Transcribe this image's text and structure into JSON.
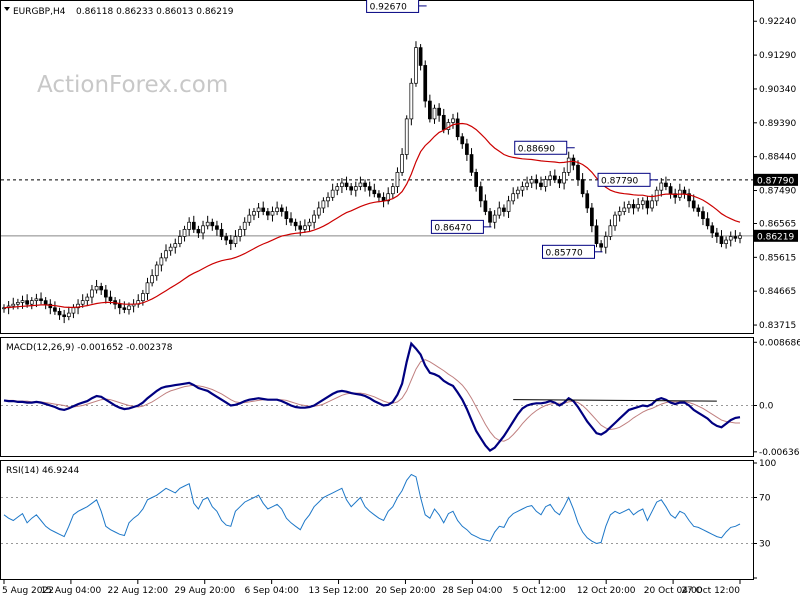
{
  "header": {
    "symbol": "EURGBP,H4",
    "ohlc": "0.86118 0.86233 0.86013 0.86219",
    "watermark": "ActionForex.com"
  },
  "colors": {
    "candle": "#000000",
    "ma": "#cc0000",
    "macd": "#000080",
    "signal": "#c08080",
    "rsi": "#1e78c8",
    "level": "#000000",
    "current": "#888888"
  },
  "chart_data": [
    {
      "type": "candlestick",
      "panel": "price",
      "ylim": [
        0.8352,
        0.9278
      ],
      "y_ticks": [
        "0.92240",
        "0.91290",
        "0.90340",
        "0.89390",
        "0.88440",
        "0.87490",
        "0.86565",
        "0.85615",
        "0.84665",
        "0.83715"
      ],
      "x_ticks": [
        "5 Aug 2022",
        "15 Aug 04:00",
        "22 Aug 12:00",
        "29 Aug 20:00",
        "6 Sep 04:00",
        "13 Sep 12:00",
        "20 Sep 20:00",
        "28 Sep 04:00",
        "5 Oct 12:00",
        "12 Oct 20:00",
        "20 Oct 04:00",
        "27 Oct 12:00"
      ],
      "close_series": [
        0.842,
        0.8425,
        0.843,
        0.8435,
        0.844,
        0.843,
        0.844,
        0.8445,
        0.844,
        0.843,
        0.842,
        0.841,
        0.84,
        0.8395,
        0.8405,
        0.842,
        0.843,
        0.844,
        0.845,
        0.847,
        0.848,
        0.847,
        0.845,
        0.844,
        0.843,
        0.842,
        0.8415,
        0.8425,
        0.843,
        0.844,
        0.846,
        0.849,
        0.851,
        0.854,
        0.856,
        0.858,
        0.859,
        0.86,
        0.862,
        0.864,
        0.866,
        0.864,
        0.863,
        0.865,
        0.866,
        0.865,
        0.864,
        0.862,
        0.861,
        0.86,
        0.862,
        0.864,
        0.866,
        0.868,
        0.869,
        0.87,
        0.869,
        0.868,
        0.869,
        0.87,
        0.869,
        0.867,
        0.866,
        0.865,
        0.864,
        0.865,
        0.866,
        0.868,
        0.87,
        0.872,
        0.873,
        0.875,
        0.876,
        0.877,
        0.876,
        0.875,
        0.876,
        0.877,
        0.876,
        0.875,
        0.874,
        0.873,
        0.872,
        0.874,
        0.876,
        0.88,
        0.885,
        0.895,
        0.905,
        0.915,
        0.91,
        0.9,
        0.895,
        0.898,
        0.896,
        0.892,
        0.894,
        0.895,
        0.89,
        0.888,
        0.885,
        0.88,
        0.876,
        0.872,
        0.869,
        0.866,
        0.868,
        0.87,
        0.869,
        0.872,
        0.874,
        0.875,
        0.876,
        0.877,
        0.878,
        0.877,
        0.876,
        0.878,
        0.879,
        0.878,
        0.877,
        0.88,
        0.884,
        0.882,
        0.878,
        0.874,
        0.87,
        0.865,
        0.86,
        0.859,
        0.862,
        0.865,
        0.868,
        0.869,
        0.87,
        0.871,
        0.87,
        0.871,
        0.872,
        0.87,
        0.872,
        0.875,
        0.877,
        0.876,
        0.874,
        0.873,
        0.875,
        0.874,
        0.872,
        0.87,
        0.869,
        0.867,
        0.865,
        0.863,
        0.862,
        0.86,
        0.861,
        0.862,
        0.8615,
        0.8622
      ],
      "ma_series": [
        0.842,
        0.8421,
        0.8422,
        0.8423,
        0.8424,
        0.8425,
        0.8426,
        0.8427,
        0.8428,
        0.8428,
        0.8427,
        0.8426,
        0.8424,
        0.8422,
        0.8421,
        0.8421,
        0.8422,
        0.8424,
        0.8426,
        0.8429,
        0.8432,
        0.8434,
        0.8435,
        0.8435,
        0.8434,
        0.8432,
        0.843,
        0.843,
        0.843,
        0.8431,
        0.8434,
        0.8439,
        0.8445,
        0.8452,
        0.846,
        0.8468,
        0.8476,
        0.8484,
        0.8492,
        0.8501,
        0.851,
        0.8517,
        0.8523,
        0.853,
        0.8537,
        0.8543,
        0.8548,
        0.8552,
        0.8555,
        0.8557,
        0.8561,
        0.8566,
        0.8572,
        0.8579,
        0.8586,
        0.8593,
        0.8599,
        0.8604,
        0.861,
        0.8616,
        0.8621,
        0.8624,
        0.8627,
        0.8629,
        0.863,
        0.8632,
        0.8634,
        0.8638,
        0.8643,
        0.8649,
        0.8656,
        0.8664,
        0.8672,
        0.868,
        0.8687,
        0.8692,
        0.8698,
        0.8704,
        0.8709,
        0.8713,
        0.8716,
        0.8718,
        0.8719,
        0.8722,
        0.8726,
        0.8734,
        0.8746,
        0.8767,
        0.8795,
        0.883,
        0.8858,
        0.8875,
        0.8887,
        0.8901,
        0.8912,
        0.8918,
        0.8926,
        0.8934,
        0.8936,
        0.8937,
        0.8935,
        0.8929,
        0.892,
        0.8908,
        0.8895,
        0.888,
        0.8868,
        0.8859,
        0.885,
        0.8845,
        0.8842,
        0.884,
        0.8838,
        0.8837,
        0.8836,
        0.8834,
        0.8832,
        0.8831,
        0.883,
        0.8829,
        0.8827,
        0.8828,
        0.883,
        0.8831,
        0.8828,
        0.8822,
        0.8813,
        0.88,
        0.8784,
        0.8769,
        0.8758,
        0.875,
        0.8745,
        0.8742,
        0.874,
        0.8739,
        0.8737,
        0.8736,
        0.8736,
        0.8733,
        0.8732,
        0.8734,
        0.8737,
        0.8739,
        0.8739,
        0.8738,
        0.8739,
        0.8739,
        0.8737,
        0.8733,
        0.8728,
        0.8722,
        0.8714,
        0.8705,
        0.8695,
        0.8684,
        0.8676,
        0.867,
        0.8664,
        0.866
      ],
      "horizontal_level": "0.87790",
      "current_price": "0.86219",
      "annotations": [
        {
          "text": "0.92670",
          "x_index": 90,
          "y": 0.9267,
          "side": "left"
        },
        {
          "text": "0.88690",
          "x_index": 122,
          "y": 0.8869,
          "side": "left"
        },
        {
          "text": "0.87790",
          "x_index": 140,
          "y": 0.8779,
          "side": "left"
        },
        {
          "text": "0.86470",
          "x_index": 104,
          "y": 0.8647,
          "side": "left"
        },
        {
          "text": "0.85770",
          "x_index": 128,
          "y": 0.8577,
          "side": "left"
        }
      ]
    },
    {
      "type": "line",
      "panel": "macd",
      "title": "MACD(12,26,9) -0.001652 -0.002378",
      "ylim": [
        -0.0068,
        0.009
      ],
      "y_ticks": [
        "0.008686",
        "0.0",
        "-0.006366"
      ],
      "trendline_x_index": [
        110,
        154
      ],
      "trendline_y": [
        0.0008,
        0.0006
      ],
      "macd_series": [
        0.0007,
        0.0006,
        0.0006,
        0.0005,
        0.0005,
        0.0004,
        0.0004,
        0.0005,
        0.0004,
        0.0002,
        0.0,
        -0.0002,
        -0.0005,
        -0.0006,
        -0.0004,
        -0.0001,
        0.0002,
        0.0004,
        0.0006,
        0.001,
        0.0013,
        0.0012,
        0.0008,
        0.0004,
        0.0,
        -0.0003,
        -0.0005,
        -0.0004,
        -0.0002,
        0.0,
        0.0004,
        0.001,
        0.0015,
        0.002,
        0.0024,
        0.0026,
        0.0027,
        0.0028,
        0.0029,
        0.003,
        0.0031,
        0.0028,
        0.0024,
        0.0022,
        0.002,
        0.0016,
        0.0012,
        0.0008,
        0.0004,
        0.0,
        0.0001,
        0.0003,
        0.0006,
        0.0008,
        0.0009,
        0.001,
        0.0009,
        0.0008,
        0.0008,
        0.0008,
        0.0006,
        0.0003,
        0.0,
        -0.0002,
        -0.0003,
        -0.0003,
        -0.0002,
        0.0,
        0.0004,
        0.0008,
        0.0012,
        0.0016,
        0.0019,
        0.002,
        0.0019,
        0.0017,
        0.0016,
        0.0015,
        0.0013,
        0.001,
        0.0006,
        0.0003,
        0.0,
        0.0001,
        0.0005,
        0.0015,
        0.003,
        0.006,
        0.0085,
        0.0078,
        0.007,
        0.0055,
        0.0045,
        0.0043,
        0.004,
        0.0034,
        0.003,
        0.0027,
        0.0018,
        0.0008,
        -0.0005,
        -0.002,
        -0.0035,
        -0.0045,
        -0.0055,
        -0.0062,
        -0.0058,
        -0.005,
        -0.0042,
        -0.0032,
        -0.0022,
        -0.0012,
        -0.0004,
        0.0,
        0.0002,
        0.0003,
        0.0003,
        0.0004,
        0.0006,
        0.0004,
        0.0,
        0.0004,
        0.001,
        0.0006,
        -0.0002,
        -0.0012,
        -0.0022,
        -0.003,
        -0.0038,
        -0.004,
        -0.0036,
        -0.003,
        -0.0024,
        -0.0018,
        -0.0012,
        -0.0006,
        -0.0004,
        -0.0002,
        0.0,
        -0.0001,
        0.0002,
        0.0008,
        0.001,
        0.0008,
        0.0004,
        0.0002,
        0.0004,
        0.0004,
        0.0,
        -0.0006,
        -0.001,
        -0.0014,
        -0.0018,
        -0.0024,
        -0.0028,
        -0.003,
        -0.0025,
        -0.002,
        -0.0017,
        -0.0016
      ],
      "signal_series": [
        0.0007,
        0.0007,
        0.0007,
        0.0006,
        0.0006,
        0.0006,
        0.0005,
        0.0005,
        0.0005,
        0.0004,
        0.0003,
        0.0002,
        0.0001,
        0.0,
        -0.0002,
        -0.0002,
        -0.0001,
        0.0,
        0.0002,
        0.0004,
        0.0006,
        0.0008,
        0.0009,
        0.0008,
        0.0006,
        0.0004,
        0.0002,
        0.0,
        -0.0001,
        -0.0002,
        -0.0001,
        0.0002,
        0.0005,
        0.0009,
        0.0013,
        0.0017,
        0.002,
        0.0022,
        0.0024,
        0.0026,
        0.0027,
        0.0028,
        0.0027,
        0.0026,
        0.0024,
        0.0022,
        0.0019,
        0.0016,
        0.0012,
        0.0008,
        0.0005,
        0.0004,
        0.0004,
        0.0005,
        0.0006,
        0.0007,
        0.0008,
        0.0008,
        0.0008,
        0.0008,
        0.0008,
        0.0007,
        0.0005,
        0.0003,
        0.0001,
        0.0,
        -0.0001,
        -0.0001,
        0.0,
        0.0002,
        0.0005,
        0.0008,
        0.0011,
        0.0014,
        0.0016,
        0.0017,
        0.0017,
        0.0017,
        0.0016,
        0.0014,
        0.0012,
        0.0009,
        0.0006,
        0.0004,
        0.0003,
        0.0005,
        0.001,
        0.002,
        0.0035,
        0.005,
        0.006,
        0.0063,
        0.006,
        0.0056,
        0.0052,
        0.0048,
        0.0043,
        0.0039,
        0.0034,
        0.0028,
        0.002,
        0.001,
        -0.0002,
        -0.0014,
        -0.0026,
        -0.0036,
        -0.0044,
        -0.0048,
        -0.0049,
        -0.0046,
        -0.004,
        -0.0033,
        -0.0025,
        -0.0018,
        -0.0012,
        -0.0007,
        -0.0003,
        0.0,
        0.0002,
        0.0003,
        0.0003,
        0.0003,
        0.0005,
        0.0006,
        0.0004,
        0.0,
        -0.0006,
        -0.0013,
        -0.002,
        -0.0027,
        -0.0031,
        -0.0033,
        -0.0032,
        -0.003,
        -0.0026,
        -0.0022,
        -0.0017,
        -0.0013,
        -0.0009,
        -0.0006,
        -0.0004,
        -0.0001,
        0.0002,
        0.0004,
        0.0005,
        0.0005,
        0.0005,
        0.0005,
        0.0004,
        0.0002,
        -0.0001,
        -0.0004,
        -0.0008,
        -0.0012,
        -0.0016,
        -0.002,
        -0.0022,
        -0.0023,
        -0.0024,
        -0.0024
      ]
    },
    {
      "type": "line",
      "panel": "rsi",
      "title": "RSI(14) 46.9244",
      "ylim": [
        0,
        100
      ],
      "y_ticks": [
        "100",
        "70",
        "30",
        "0"
      ],
      "y_tick_values": [
        100,
        70,
        30,
        0
      ],
      "guides": [
        70,
        30
      ],
      "rsi_series": [
        55,
        52,
        50,
        53,
        56,
        48,
        52,
        55,
        50,
        45,
        42,
        40,
        38,
        36,
        45,
        55,
        58,
        60,
        62,
        65,
        68,
        58,
        45,
        42,
        40,
        38,
        37,
        48,
        52,
        55,
        60,
        68,
        70,
        72,
        75,
        78,
        76,
        74,
        78,
        80,
        82,
        65,
        60,
        68,
        70,
        62,
        58,
        50,
        46,
        45,
        58,
        62,
        66,
        68,
        70,
        72,
        65,
        60,
        62,
        64,
        60,
        52,
        48,
        45,
        42,
        50,
        55,
        62,
        66,
        70,
        72,
        74,
        76,
        78,
        68,
        62,
        66,
        70,
        62,
        58,
        55,
        52,
        50,
        58,
        62,
        70,
        76,
        85,
        90,
        88,
        70,
        55,
        52,
        60,
        55,
        48,
        56,
        58,
        50,
        45,
        42,
        38,
        36,
        34,
        33,
        32,
        40,
        45,
        44,
        52,
        56,
        58,
        60,
        62,
        63,
        58,
        55,
        62,
        64,
        58,
        55,
        62,
        70,
        60,
        48,
        40,
        35,
        32,
        30,
        31,
        45,
        55,
        58,
        56,
        58,
        60,
        55,
        58,
        60,
        50,
        58,
        66,
        68,
        62,
        55,
        52,
        58,
        56,
        50,
        45,
        44,
        42,
        40,
        38,
        36,
        35,
        40,
        44,
        45,
        47
      ]
    }
  ]
}
